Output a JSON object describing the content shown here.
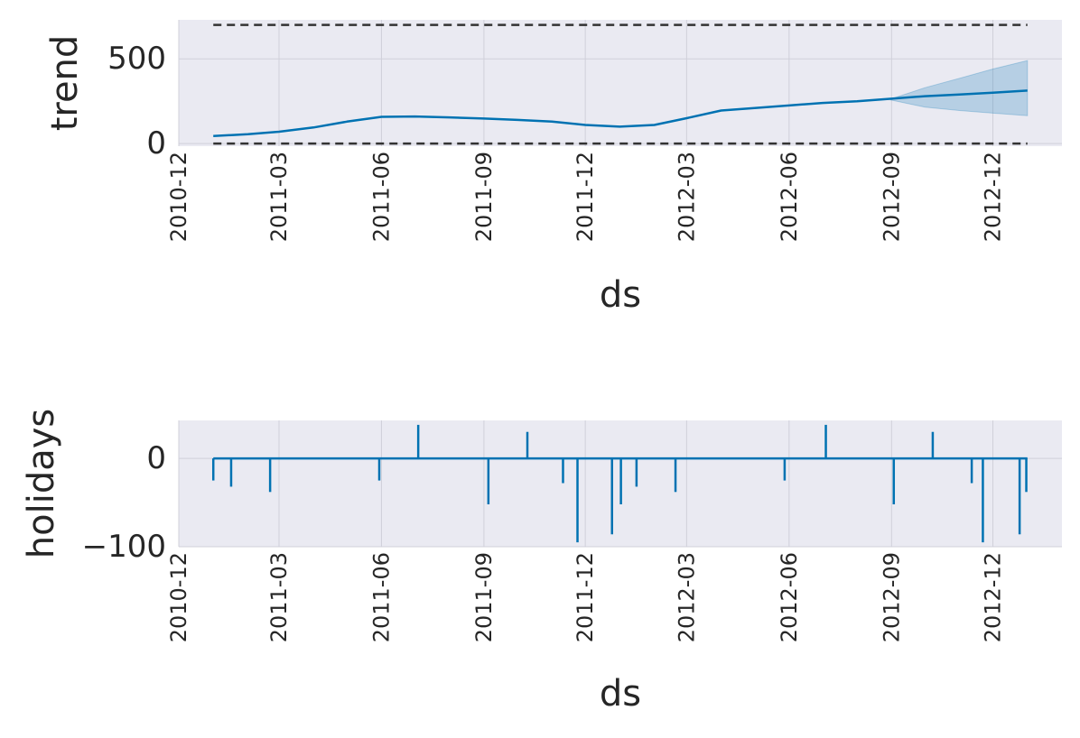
{
  "colors": {
    "line": "#0072B2",
    "band": "#0072B2",
    "cap": "#333333",
    "panel_bg": "#EAEAF2",
    "grid": "#D0D0DA",
    "text": "#262626"
  },
  "chart_data": [
    {
      "type": "line",
      "title": "",
      "xlabel": "ds",
      "ylabel": "trend",
      "xlim": [
        "2010-12-01",
        "2013-02-01"
      ],
      "ylim": [
        -15,
        730
      ],
      "x_ticks": [
        "2010-12",
        "2011-03",
        "2011-06",
        "2011-09",
        "2011-12",
        "2012-03",
        "2012-06",
        "2012-09",
        "2012-12"
      ],
      "y_ticks": [
        {
          "value": 0,
          "label": "0"
        },
        {
          "value": 500,
          "label": "500"
        }
      ],
      "grid": true,
      "cap_lines": [
        0,
        700
      ],
      "series": [
        {
          "x": [
            "2011-01-01",
            "2011-02-01",
            "2011-03-01",
            "2011-04-01",
            "2011-05-01",
            "2011-06-01",
            "2011-07-01",
            "2011-08-01",
            "2011-09-01",
            "2011-10-01",
            "2011-11-01",
            "2011-12-01",
            "2012-01-01",
            "2012-02-01",
            "2012-03-01",
            "2012-04-01",
            "2012-05-01",
            "2012-06-01",
            "2012-07-01",
            "2012-08-01",
            "2012-09-01",
            "2012-10-01",
            "2012-11-01",
            "2012-12-01",
            "2013-01-01"
          ],
          "y": [
            45,
            55,
            70,
            95,
            130,
            158,
            160,
            155,
            148,
            140,
            130,
            110,
            100,
            110,
            150,
            195,
            210,
            225,
            240,
            250,
            265,
            280,
            290,
            300,
            313
          ]
        }
      ],
      "uncertainty_band": {
        "x": [
          "2012-08-31",
          "2012-10-01",
          "2012-11-01",
          "2012-12-01",
          "2013-01-01"
        ],
        "lower": [
          258,
          215,
          195,
          180,
          165
        ],
        "upper": [
          262,
          330,
          385,
          440,
          490
        ]
      }
    },
    {
      "type": "line",
      "title": "",
      "xlabel": "ds",
      "ylabel": "holidays",
      "xlim": [
        "2010-12-01",
        "2013-02-01"
      ],
      "ylim": [
        -100,
        43
      ],
      "x_ticks": [
        "2010-12",
        "2011-03",
        "2011-06",
        "2011-09",
        "2011-12",
        "2012-03",
        "2012-06",
        "2012-09",
        "2012-12"
      ],
      "y_ticks": [
        {
          "value": 0,
          "label": "0"
        },
        {
          "value": -100,
          "label": "−100"
        }
      ],
      "grid": true,
      "baseline_range": [
        "2011-01-01",
        "2013-01-01"
      ],
      "series": [
        {
          "name": "",
          "spikes": [
            {
              "date": "2011-01-01",
              "value": -25
            },
            {
              "date": "2011-01-17",
              "value": -32
            },
            {
              "date": "2011-02-21",
              "value": -38
            },
            {
              "date": "2011-05-30",
              "value": -25
            },
            {
              "date": "2011-07-04",
              "value": 38
            },
            {
              "date": "2011-09-05",
              "value": -52
            },
            {
              "date": "2011-10-10",
              "value": 30
            },
            {
              "date": "2011-11-11",
              "value": -28
            },
            {
              "date": "2011-11-24",
              "value": -95
            },
            {
              "date": "2011-12-25",
              "value": -86
            },
            {
              "date": "2012-01-02",
              "value": -52
            },
            {
              "date": "2012-01-16",
              "value": -32
            },
            {
              "date": "2012-02-20",
              "value": -38
            },
            {
              "date": "2012-05-28",
              "value": -25
            },
            {
              "date": "2012-07-04",
              "value": 38
            },
            {
              "date": "2012-09-03",
              "value": -52
            },
            {
              "date": "2012-10-08",
              "value": 30
            },
            {
              "date": "2012-11-12",
              "value": -28
            },
            {
              "date": "2012-11-22",
              "value": -95
            },
            {
              "date": "2012-12-25",
              "value": -86
            },
            {
              "date": "2012-12-31",
              "value": -38
            }
          ]
        }
      ]
    }
  ]
}
